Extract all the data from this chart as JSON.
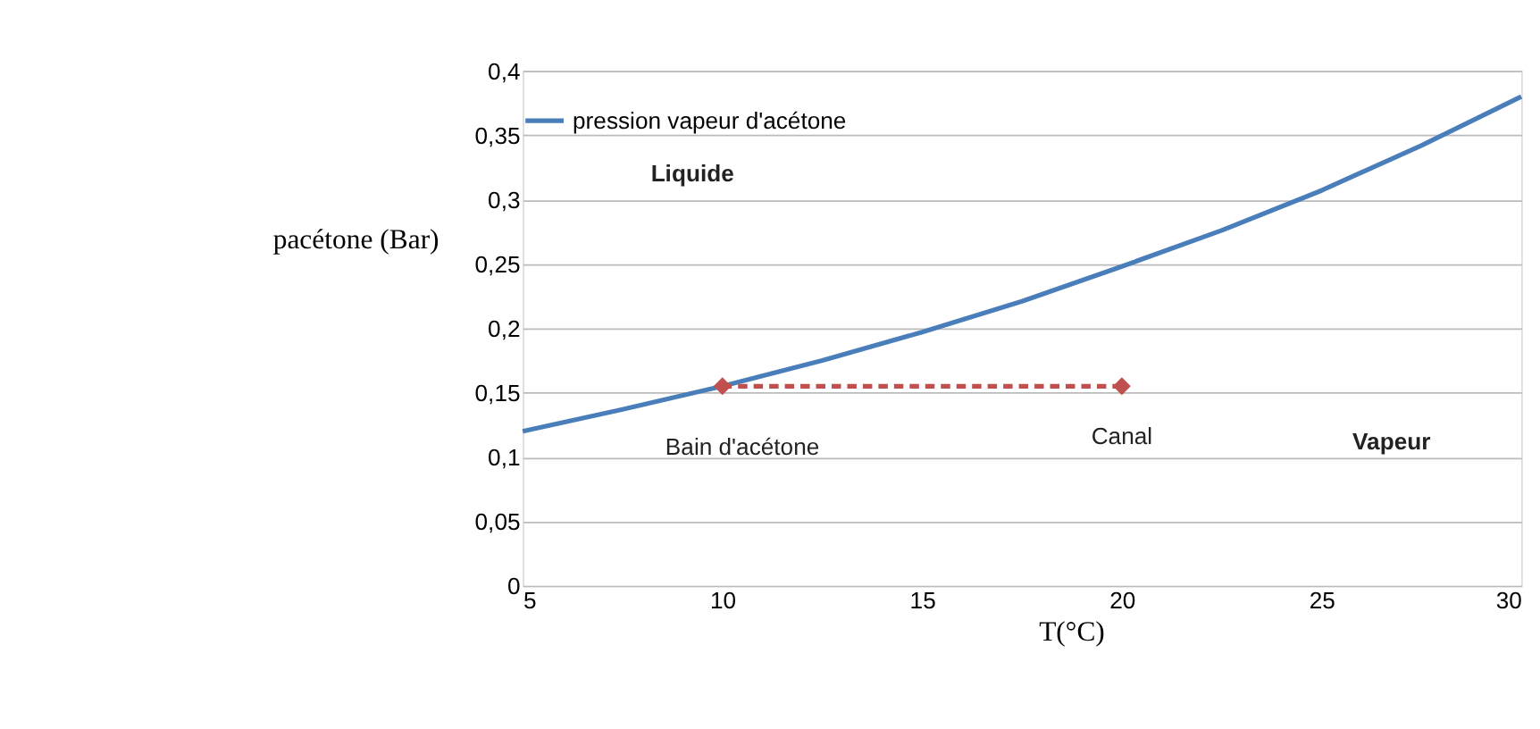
{
  "chart_data": {
    "type": "line",
    "xlabel": "T(°C)",
    "ylabel": "pacétone (Bar)",
    "x": [
      5,
      7.5,
      10,
      12.5,
      15,
      17.5,
      20,
      22.5,
      25,
      27.5,
      30
    ],
    "series": [
      {
        "name": "pression vapeur d'acétone",
        "color": "#4a7ebb",
        "marker": "none",
        "line_style": "solid",
        "values": [
          0.12,
          0.137,
          0.155,
          0.175,
          0.197,
          0.221,
          0.248,
          0.276,
          0.307,
          0.342,
          0.38
        ]
      },
      {
        "type": "line",
        "color": "#c0504d",
        "marker": "diamond",
        "line_style": "dashed",
        "x": [
          10,
          20
        ],
        "values": [
          0.155,
          0.155
        ]
      }
    ],
    "xlim": [
      5,
      30
    ],
    "xticks": [
      5,
      10,
      15,
      20,
      25,
      30
    ],
    "ylim": [
      0,
      0.4
    ],
    "yticks": [
      0,
      {
        "value": 0.05,
        "label": "0,05"
      },
      {
        "value": 0.1,
        "label": "0,1"
      },
      {
        "value": 0.15,
        "label": "0,15"
      },
      {
        "value": 0.2,
        "label": "0,2"
      },
      {
        "value": 0.25,
        "label": "0,25"
      },
      {
        "value": 0.3,
        "label": "0,3"
      },
      {
        "value": 0.35,
        "label": "0,35"
      },
      {
        "value": 0.4,
        "label": "0,4"
      }
    ],
    "grid": "y",
    "legend": "top",
    "annotations": [
      "Liquide",
      "Vapeur",
      "Bain d'acétone",
      "Canal"
    ]
  }
}
